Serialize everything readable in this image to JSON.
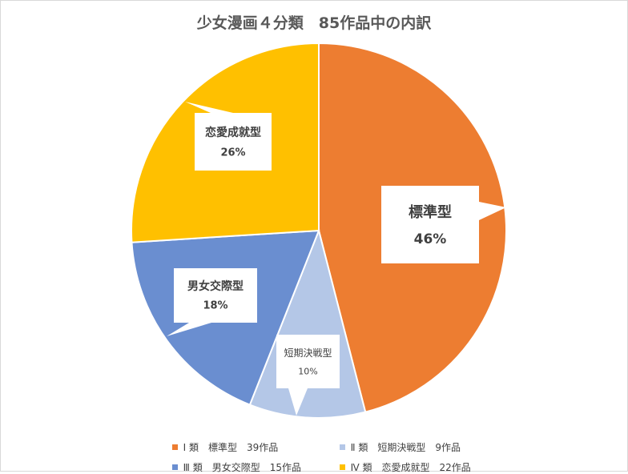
{
  "chart_data": {
    "type": "pie",
    "title": "少女漫画４分類　85作品中の内訳",
    "slices": [
      {
        "label": "標準型",
        "value": 46,
        "count": 39,
        "pct_label": "46%",
        "color": "#ED7D31",
        "legend": "Ⅰ 類　標準型　39作品"
      },
      {
        "label": "短期決戦型",
        "value": 10,
        "count": 9,
        "pct_label": "10%",
        "color": "#B4C7E7",
        "legend": "Ⅱ 類　短期決戦型　9作品"
      },
      {
        "label": "男女交際型",
        "value": 18,
        "count": 15,
        "pct_label": "18%",
        "color": "#6A8ED0",
        "legend": "Ⅲ 類　男女交際型　15作品"
      },
      {
        "label": "恋愛成就型",
        "value": 26,
        "count": 22,
        "pct_label": "26%",
        "color": "#FFC000",
        "legend": "Ⅳ 類　恋愛成就型　22作品"
      }
    ],
    "legend_position": "bottom"
  }
}
